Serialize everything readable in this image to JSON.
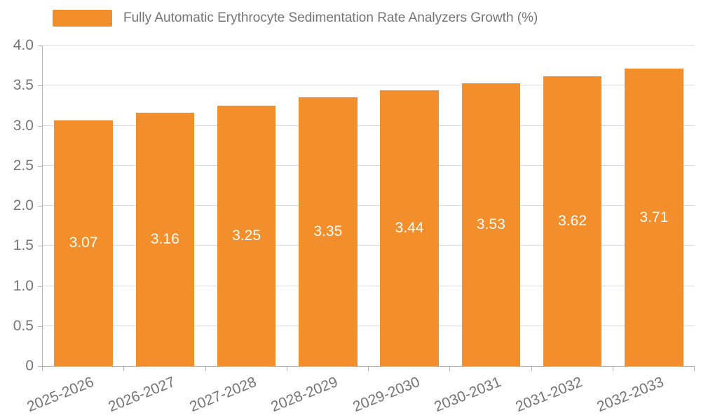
{
  "chart_data": {
    "type": "bar",
    "title": "Fully Automatic Erythrocyte Sedimentation Rate Analyzers Growth (%)",
    "categories": [
      "2025-2026",
      "2026-2027",
      "2027-2028",
      "2028-2029",
      "2029-2030",
      "2030-2031",
      "2031-2032",
      "2032-2033"
    ],
    "values": [
      3.07,
      3.16,
      3.25,
      3.35,
      3.44,
      3.53,
      3.62,
      3.71
    ],
    "value_labels": [
      "3.07",
      "3.16",
      "3.25",
      "3.35",
      "3.44",
      "3.53",
      "3.62",
      "3.71"
    ],
    "xlabel": "",
    "ylabel": "",
    "ylim": [
      0,
      4.0
    ],
    "ytick_step": 0.5,
    "ytick_labels": [
      "0",
      "0.5",
      "1.0",
      "1.5",
      "2.0",
      "2.5",
      "3.0",
      "3.5",
      "4.0"
    ],
    "grid": true,
    "legend_position": "top-left",
    "bar_color": "#F28E2B",
    "label_color": "#ffffff",
    "axis_text_color": "#757575",
    "gridline_color": "#dcdcdc",
    "axis_line_color": "#b3b3b3"
  }
}
